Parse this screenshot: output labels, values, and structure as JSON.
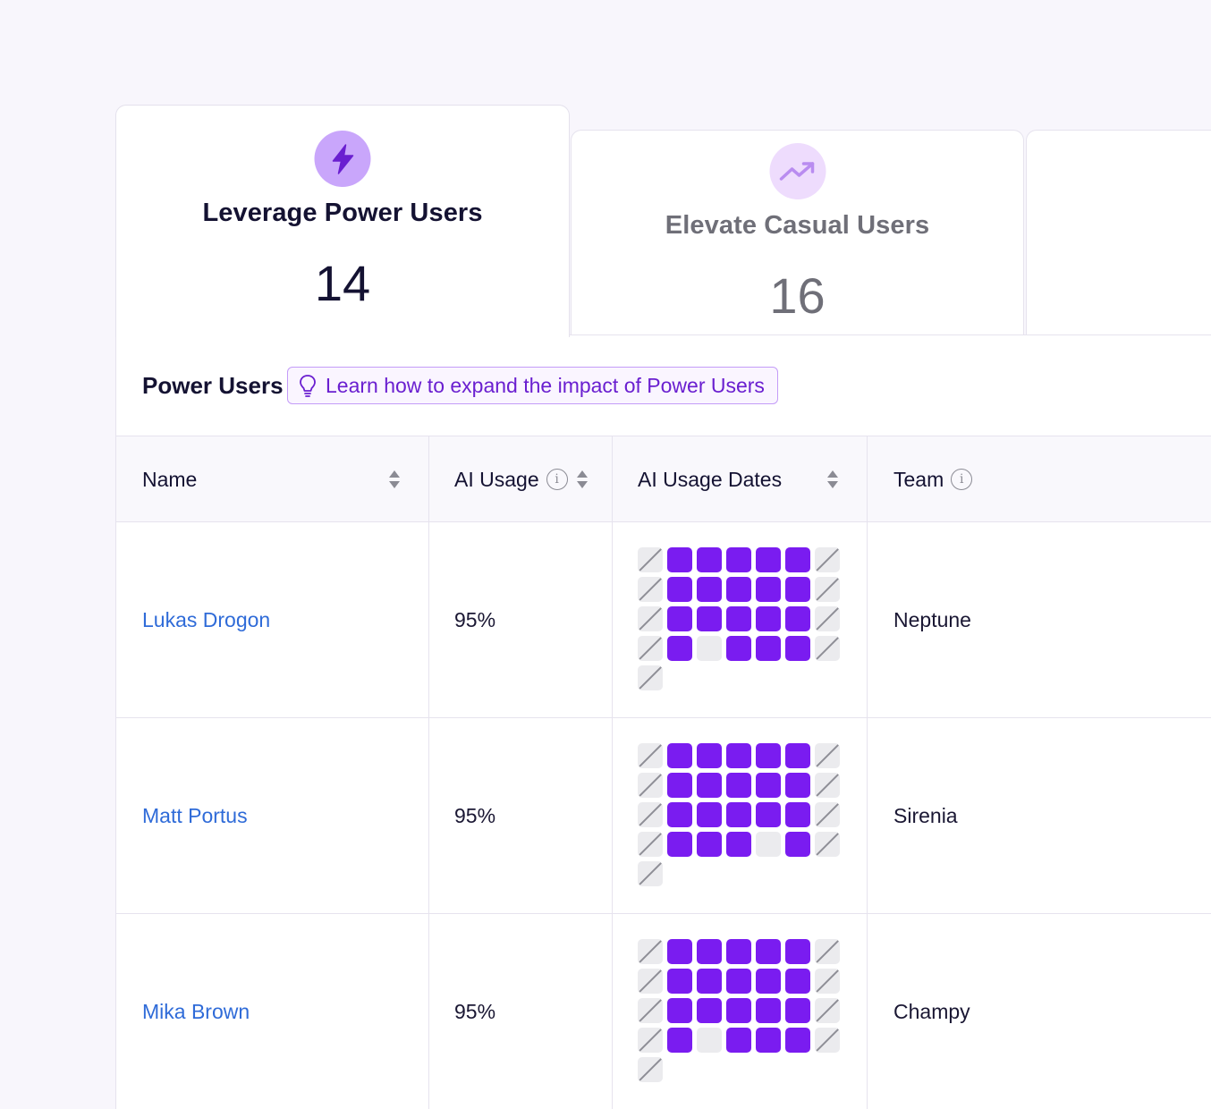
{
  "tabs": [
    {
      "title": "Leverage Power Users",
      "count": "14",
      "icon": "lightning-icon",
      "active": true,
      "icon_bg": "#c9a6fb",
      "icon_color": "#6a1fd0"
    },
    {
      "title": "Elevate Casual Users",
      "count": "16",
      "icon": "trending-up-icon",
      "active": false,
      "icon_bg": "#eedcfd",
      "icon_color": "#b98cf0"
    }
  ],
  "section": {
    "title": "Power Users",
    "learn_label": "Learn how to expand the impact of Power Users"
  },
  "table": {
    "columns": [
      "Name",
      "AI Usage",
      "AI Usage Dates",
      "Team"
    ],
    "rows": [
      {
        "name": "Lukas Drogon",
        "usage": "95%",
        "team": "Neptune",
        "grid": [
          "n",
          "o",
          "o",
          "o",
          "o",
          "o",
          "n",
          "n",
          "o",
          "o",
          "o",
          "o",
          "o",
          "n",
          "n",
          "o",
          "o",
          "o",
          "o",
          "o",
          "n",
          "n",
          "o",
          "f",
          "o",
          "o",
          "o",
          "n",
          "n"
        ]
      },
      {
        "name": "Matt Portus",
        "usage": "95%",
        "team": "Sirenia",
        "grid": [
          "n",
          "o",
          "o",
          "o",
          "o",
          "o",
          "n",
          "n",
          "o",
          "o",
          "o",
          "o",
          "o",
          "n",
          "n",
          "o",
          "o",
          "o",
          "o",
          "o",
          "n",
          "n",
          "o",
          "o",
          "o",
          "f",
          "o",
          "n",
          "n"
        ]
      },
      {
        "name": "Mika Brown",
        "usage": "95%",
        "team": "Champy",
        "grid": [
          "n",
          "o",
          "o",
          "o",
          "o",
          "o",
          "n",
          "n",
          "o",
          "o",
          "o",
          "o",
          "o",
          "n",
          "n",
          "o",
          "o",
          "o",
          "o",
          "o",
          "n",
          "n",
          "o",
          "f",
          "o",
          "o",
          "o",
          "n",
          "n"
        ]
      }
    ]
  },
  "colors": {
    "accent": "#7a1cf0",
    "link": "#2f6bd8",
    "learn_text": "#6a1fd0",
    "learn_border": "#c49cf8"
  }
}
